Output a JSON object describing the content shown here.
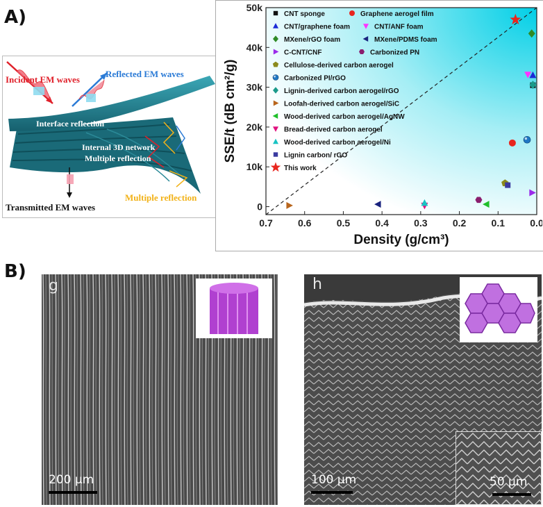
{
  "panels": {
    "a_label": "A)",
    "b_label": "B)"
  },
  "schematic": {
    "incident": "Incident EM waves",
    "reflected": "Reflected EM waves",
    "interface": "Interface reflection",
    "network": "Internal 3D network",
    "multiple_inner": "Multiple reflection",
    "multiple_outer": "Multiple reflection",
    "transmitted": "Transmitted  EM waves",
    "colors": {
      "incident": "#e0202a",
      "reflected": "#2a7ad6",
      "material": "#2c93a4",
      "multiple": "#f2b218",
      "transmitted": "#111111"
    }
  },
  "chart_data": {
    "type": "scatter",
    "title": "",
    "xlabel": "Density (g/cm³)",
    "ylabel": "SSE/t (dB cm²/g)",
    "x_reversed": true,
    "xlim": [
      0.7,
      0.0
    ],
    "ylim": [
      -2000,
      50000
    ],
    "xticks": [
      "0.7",
      "0.6",
      "0.5",
      "0.4",
      "0.3",
      "0.2",
      "0.1",
      "0.0"
    ],
    "yticks": [
      "0",
      "10k",
      "20k",
      "30k",
      "40k",
      "50k"
    ],
    "legend_position": "top-left",
    "background": "gradient cyan (top-right) to white (bottom-left)",
    "series": [
      {
        "name": "CNT sponge",
        "marker": "square",
        "color": "#111111",
        "points": [
          [
            0.01,
            30500
          ]
        ]
      },
      {
        "name": "Graphene aerogel film",
        "marker": "circle",
        "color": "#e8261e",
        "points": [
          [
            0.063,
            16000
          ]
        ]
      },
      {
        "name": "CNT/graphene foam",
        "marker": "triangle-up",
        "color": "#1c2bd6",
        "points": [
          [
            0.01,
            33000
          ]
        ]
      },
      {
        "name": "CNT/ANF foam",
        "marker": "triangle-down",
        "color": "#ff33ff",
        "points": [
          [
            0.023,
            33200
          ]
        ]
      },
      {
        "name": "MXene/rGO foam",
        "marker": "diamond",
        "color": "#2f8a26",
        "points": [
          [
            0.013,
            43500
          ]
        ]
      },
      {
        "name": "MXene/PDMS foam",
        "marker": "triangle-left",
        "color": "#1a237e",
        "points": [
          [
            0.41,
            600
          ]
        ]
      },
      {
        "name": "C-CNT/CNF",
        "marker": "triangle-right",
        "color": "#9b2bea",
        "points": [
          [
            0.012,
            3500
          ]
        ]
      },
      {
        "name": "Carbonized PN",
        "marker": "hexagon",
        "color": "#8a1e6e",
        "points": [
          [
            0.15,
            1700
          ]
        ]
      },
      {
        "name": "Cellulose-derived carbon aerogel",
        "marker": "pentagon",
        "color": "#8a8a1c",
        "points": [
          [
            0.082,
            5900
          ]
        ]
      },
      {
        "name": "Carbonized PI/rGO",
        "marker": "sphere",
        "color": "#1f77c4",
        "points": [
          [
            0.025,
            16800
          ]
        ]
      },
      {
        "name": "Lignin-derived carbon aerogel/rGO",
        "marker": "diamond",
        "color": "#1a9a8a",
        "points": [
          [
            0.01,
            30600
          ]
        ]
      },
      {
        "name": "Loofah-derived carbon aerogel/SiC",
        "marker": "triangle-right",
        "color": "#b8651c",
        "points": [
          [
            0.64,
            300
          ]
        ]
      },
      {
        "name": "Wood-derived carbon aerogel/AgNW",
        "marker": "triangle-left",
        "color": "#1fbf2a",
        "points": [
          [
            0.13,
            600
          ]
        ]
      },
      {
        "name": "Bread-derived carbon aerogel",
        "marker": "triangle-down",
        "color": "#e0117f",
        "points": [
          [
            0.29,
            300
          ]
        ]
      },
      {
        "name": "Wood-derived carbon aerogel/Ni",
        "marker": "triangle-up",
        "color": "#19c3c3",
        "points": [
          [
            0.29,
            900
          ]
        ]
      },
      {
        "name": "Lignin carbon/ rGO",
        "marker": "square",
        "color": "#3a3aa0",
        "points": [
          [
            0.075,
            5400
          ]
        ]
      },
      {
        "name": "This work",
        "marker": "star",
        "color": "#e8261e",
        "points": [
          [
            0.055,
            47000
          ]
        ]
      }
    ],
    "reference_line": {
      "style": "dashed",
      "from": [
        0.7,
        -2000
      ],
      "to": [
        0.0,
        50000
      ]
    }
  },
  "sem": {
    "left": {
      "letter": "g",
      "scale": "200 µm"
    },
    "right": {
      "letter": "h",
      "scale": "100 µm",
      "inset_scale": "50 µm"
    }
  }
}
